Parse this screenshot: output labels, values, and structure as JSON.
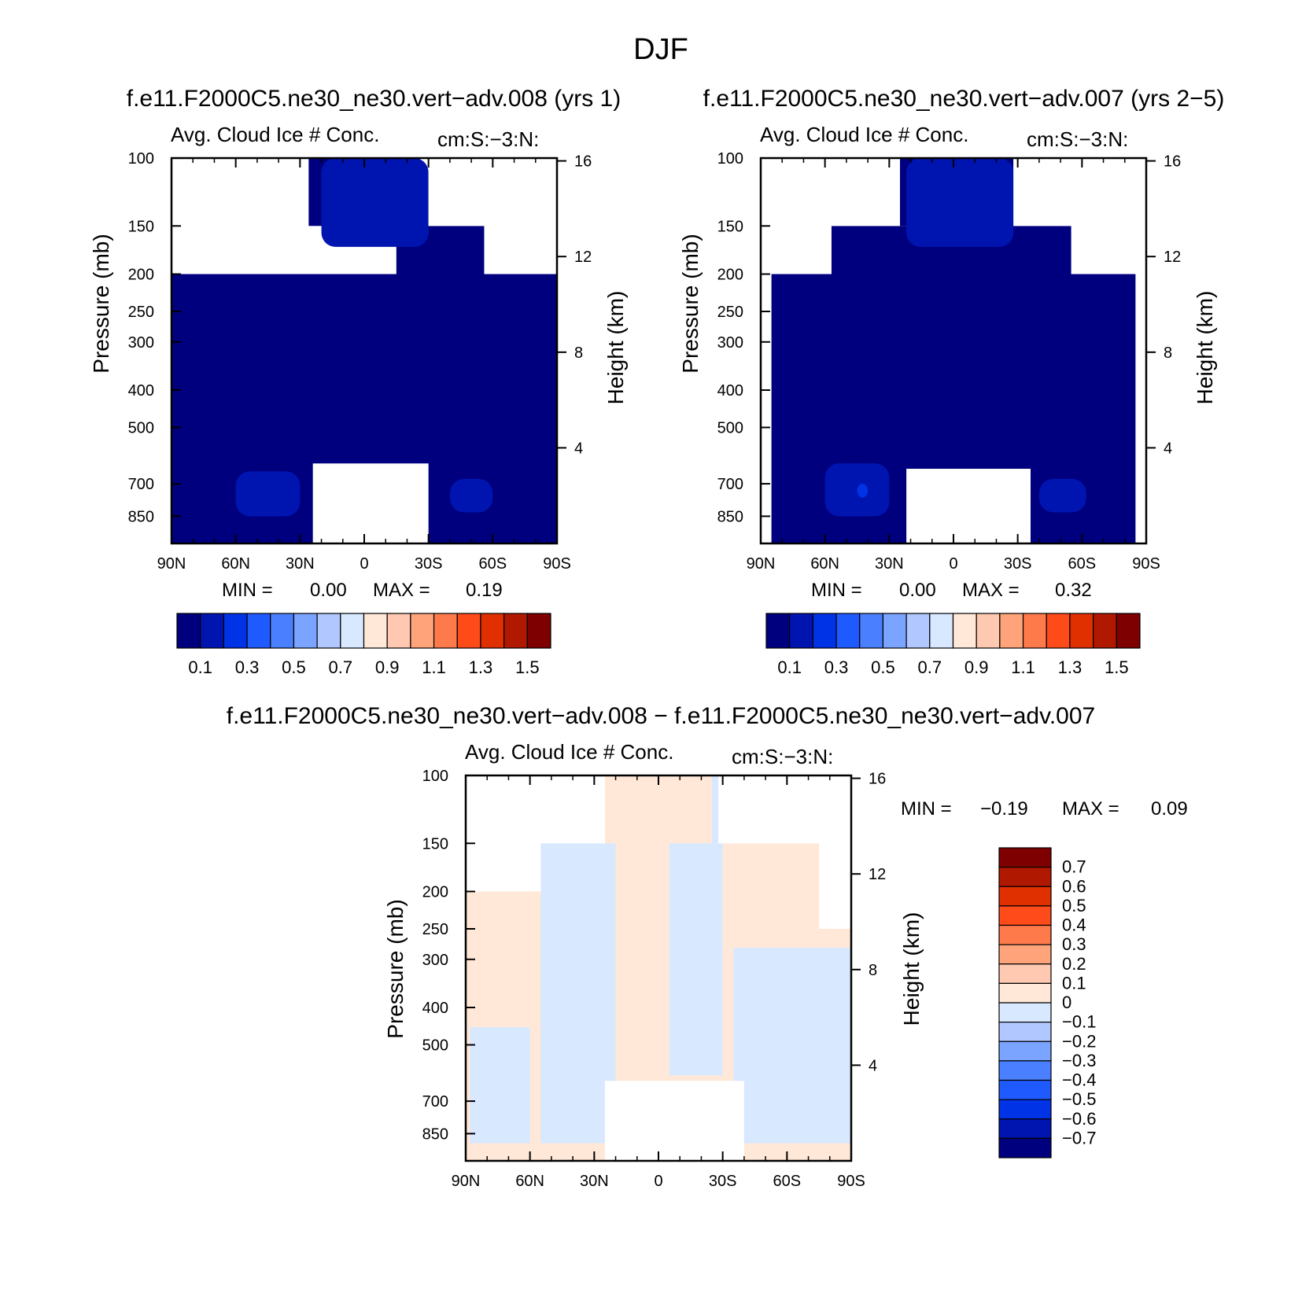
{
  "page_title": "DJF",
  "colors": {
    "main_scale": [
      "#00007f",
      "#0015b0",
      "#0033e6",
      "#1f5aff",
      "#4a80ff",
      "#7aa4ff",
      "#b0c8ff",
      "#d8e8ff",
      "#ffe8d8",
      "#ffc8b0",
      "#ffa47a",
      "#ff7a4a",
      "#ff4a1a",
      "#e03000",
      "#b01800",
      "#7f0000"
    ],
    "diff_scale": [
      "#00007f",
      "#0015b0",
      "#0033e6",
      "#1f5aff",
      "#4a80ff",
      "#7aa4ff",
      "#b0c8ff",
      "#d8e8ff",
      "#ffe8d8",
      "#ffc8b0",
      "#ffa47a",
      "#ff7a4a",
      "#ff4a1a",
      "#e03000",
      "#b01800",
      "#7f0000"
    ],
    "missing": "#ffffff"
  },
  "chart_data": [
    {
      "type": "heatmap",
      "case_title": "f.e11.F2000C5.ne30_ne30.vert−adv.008 (yrs 1)",
      "title": "Avg. Cloud Ice # Conc.",
      "units": "cm:S:−3:N:",
      "xlabel": "",
      "ylabel": "Pressure (mb)",
      "y2label": "Height (km)",
      "x_ticks": [
        "90N",
        "60N",
        "30N",
        "0",
        "30S",
        "60S",
        "90S"
      ],
      "y_ticks": [
        "100",
        "150",
        "200",
        "250",
        "300",
        "400",
        "500",
        "700",
        "850"
      ],
      "y_tick_values": [
        100,
        150,
        200,
        250,
        300,
        400,
        500,
        700,
        850
      ],
      "y2_ticks": [
        "16",
        "12",
        "8",
        "4"
      ],
      "y2_tick_values": [
        16,
        12,
        8,
        4
      ],
      "ylim": [
        100,
        1000
      ],
      "xlim": [
        90,
        -90
      ],
      "min_label": "MIN =",
      "min_value": "0.00",
      "max_label": "MAX =",
      "max_value": "0.19",
      "colorbar_labels": [
        "0.1",
        "0.3",
        "0.5",
        "0.7",
        "0.9",
        "1.1",
        "1.3",
        "1.5"
      ],
      "background_value_level": 0,
      "features": [
        {
          "lat_range": [
            -90,
            90
          ],
          "p_range": [
            200,
            1000
          ],
          "level": 0
        },
        {
          "lat_range": [
            -15,
            -90
          ],
          "p_range": [
            150,
            200
          ],
          "level": 0
        },
        {
          "lat_range": [
            26,
            -26
          ],
          "p_range": [
            100,
            150
          ],
          "level": 0
        },
        {
          "lat_range": [
            20,
            -30
          ],
          "p_range": [
            100,
            170
          ],
          "level": 1
        },
        {
          "lat_range": [
            60,
            30
          ],
          "p_range": [
            650,
            850
          ],
          "level": 1
        },
        {
          "lat_range": [
            -40,
            -60
          ],
          "p_range": [
            680,
            830
          ],
          "level": 1
        }
      ],
      "missing_regions": [
        {
          "lat_range": [
            90,
            61
          ],
          "p_range": [
            100,
            200
          ]
        },
        {
          "lat_range": [
            -56,
            -90
          ],
          "p_range": [
            100,
            200
          ]
        },
        {
          "lat_range": [
            90,
            26
          ],
          "p_range": [
            100,
            150
          ]
        },
        {
          "lat_range": [
            -30,
            -90
          ],
          "p_range": [
            100,
            150
          ]
        },
        {
          "lat_range": [
            24,
            -30
          ],
          "p_range": [
            620,
            1000
          ]
        }
      ]
    },
    {
      "type": "heatmap",
      "case_title": "f.e11.F2000C5.ne30_ne30.vert−adv.007 (yrs 2−5)",
      "title": "Avg. Cloud Ice # Conc.",
      "units": "cm:S:−3:N:",
      "xlabel": "",
      "ylabel": "Pressure (mb)",
      "y2label": "Height (km)",
      "x_ticks": [
        "90N",
        "60N",
        "30N",
        "0",
        "30S",
        "60S",
        "90S"
      ],
      "y_ticks": [
        "100",
        "150",
        "200",
        "250",
        "300",
        "400",
        "500",
        "700",
        "850"
      ],
      "y_tick_values": [
        100,
        150,
        200,
        250,
        300,
        400,
        500,
        700,
        850
      ],
      "y2_ticks": [
        "16",
        "12",
        "8",
        "4"
      ],
      "y2_tick_values": [
        16,
        12,
        8,
        4
      ],
      "ylim": [
        100,
        1000
      ],
      "xlim": [
        90,
        -90
      ],
      "min_label": "MIN =",
      "min_value": "0.00",
      "max_label": "MAX =",
      "max_value": "0.32",
      "colorbar_labels": [
        "0.1",
        "0.3",
        "0.5",
        "0.7",
        "0.9",
        "1.1",
        "1.3",
        "1.5"
      ],
      "background_value_level": 0,
      "features": [
        {
          "lat_range": [
            85,
            -85
          ],
          "p_range": [
            200,
            1000
          ],
          "level": 0
        },
        {
          "lat_range": [
            57,
            -55
          ],
          "p_range": [
            150,
            200
          ],
          "level": 0
        },
        {
          "lat_range": [
            25,
            -28
          ],
          "p_range": [
            100,
            150
          ],
          "level": 0
        },
        {
          "lat_range": [
            22,
            -28
          ],
          "p_range": [
            100,
            170
          ],
          "level": 1
        },
        {
          "lat_range": [
            60,
            30
          ],
          "p_range": [
            620,
            850
          ],
          "level": 1
        },
        {
          "lat_range": [
            45,
            40
          ],
          "p_range": [
            700,
            760
          ],
          "level": 2
        },
        {
          "lat_range": [
            -40,
            -62
          ],
          "p_range": [
            680,
            830
          ],
          "level": 1
        }
      ],
      "missing_regions": [
        {
          "lat_range": [
            90,
            25
          ],
          "p_range": [
            100,
            150
          ]
        },
        {
          "lat_range": [
            -28,
            -90
          ],
          "p_range": [
            100,
            150
          ]
        },
        {
          "lat_range": [
            90,
            57
          ],
          "p_range": [
            100,
            200
          ]
        },
        {
          "lat_range": [
            -55,
            -90
          ],
          "p_range": [
            100,
            200
          ]
        },
        {
          "lat_range": [
            22,
            -36
          ],
          "p_range": [
            640,
            1000
          ]
        }
      ]
    },
    {
      "type": "heatmap",
      "case_title": "f.e11.F2000C5.ne30_ne30.vert−adv.008 − f.e11.F2000C5.ne30_ne30.vert−adv.007",
      "title": "Avg. Cloud Ice # Conc.",
      "units": "cm:S:−3:N:",
      "xlabel": "",
      "ylabel": "Pressure (mb)",
      "y2label": "Height (km)",
      "x_ticks": [
        "90N",
        "60N",
        "30N",
        "0",
        "30S",
        "60S",
        "90S"
      ],
      "y_ticks": [
        "100",
        "150",
        "200",
        "250",
        "300",
        "400",
        "500",
        "700",
        "850"
      ],
      "y_tick_values": [
        100,
        150,
        200,
        250,
        300,
        400,
        500,
        700,
        850
      ],
      "y2_ticks": [
        "16",
        "12",
        "8",
        "4"
      ],
      "y2_tick_values": [
        16,
        12,
        8,
        4
      ],
      "ylim": [
        100,
        1000
      ],
      "xlim": [
        90,
        -90
      ],
      "min_label": "MIN =",
      "min_value": "−0.19",
      "max_label": "MAX =",
      "max_value": "0.09",
      "colorbar_labels": [
        "0.7",
        "0.6",
        "0.5",
        "0.4",
        "0.3",
        "0.2",
        "0.1",
        "0",
        "−0.1",
        "−0.2",
        "−0.3",
        "−0.4",
        "−0.5",
        "−0.6",
        "−0.7"
      ],
      "features": [
        {
          "lat_range": [
            90,
            -90
          ],
          "p_range": [
            200,
            1000
          ],
          "level": 8
        },
        {
          "lat_range": [
            55,
            -75
          ],
          "p_range": [
            150,
            200
          ],
          "level": 8
        },
        {
          "lat_range": [
            25,
            -28
          ],
          "p_range": [
            100,
            150
          ],
          "level": 8
        },
        {
          "lat_range": [
            55,
            20
          ],
          "p_range": [
            150,
            900
          ],
          "level": 7
        },
        {
          "lat_range": [
            -5,
            -30
          ],
          "p_range": [
            150,
            600
          ],
          "level": 7
        },
        {
          "lat_range": [
            -35,
            -90
          ],
          "p_range": [
            280,
            900
          ],
          "level": 7
        },
        {
          "lat_range": [
            88,
            60
          ],
          "p_range": [
            450,
            900
          ],
          "level": 7
        },
        {
          "lat_range": [
            -25,
            -28
          ],
          "p_range": [
            100,
            150
          ],
          "level": 7
        }
      ],
      "missing_regions": [
        {
          "lat_range": [
            90,
            25
          ],
          "p_range": [
            100,
            150
          ]
        },
        {
          "lat_range": [
            -28,
            -90
          ],
          "p_range": [
            100,
            150
          ]
        },
        {
          "lat_range": [
            90,
            55
          ],
          "p_range": [
            100,
            200
          ]
        },
        {
          "lat_range": [
            -75,
            -90
          ],
          "p_range": [
            100,
            250
          ]
        },
        {
          "lat_range": [
            25,
            -40
          ],
          "p_range": [
            620,
            1000
          ]
        }
      ]
    }
  ]
}
